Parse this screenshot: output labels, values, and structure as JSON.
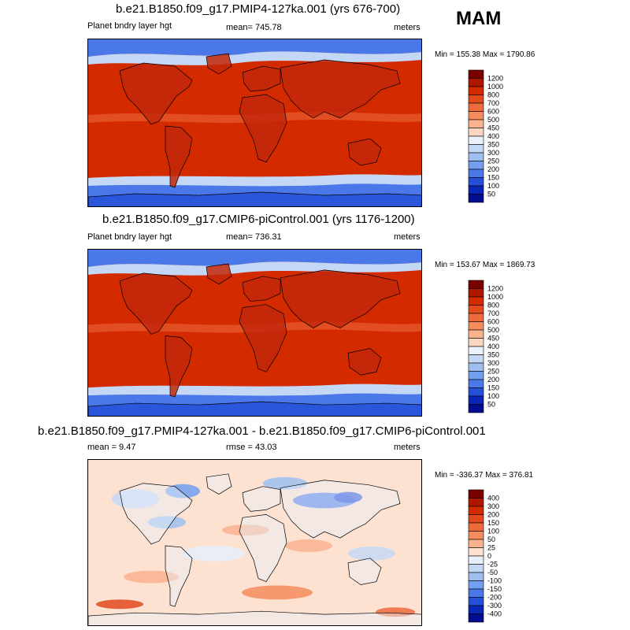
{
  "season": "MAM",
  "panels": [
    {
      "title": "b.e21.B1850.f09_g17.PMIP4-127ka.001 (yrs 676-700)",
      "left_label": "Planet bndry layer hgt",
      "center_label": "mean= 745.78",
      "units": "meters",
      "minmax": "Min = 155.38 Max = 1790.86",
      "map_name": "pmip4-127ka-map",
      "kind": "abs",
      "colorbar": {
        "labels": [
          "1200",
          "1000",
          "800",
          "700",
          "600",
          "500",
          "450",
          "400",
          "350",
          "300",
          "250",
          "200",
          "150",
          "100",
          "50"
        ],
        "colors": [
          "#7a0000",
          "#b01500",
          "#d42a00",
          "#e24a1e",
          "#ec6a3c",
          "#f48c5e",
          "#f9b28e",
          "#fcd6c0",
          "#eaf1fb",
          "#c4d8f6",
          "#9ebff0",
          "#729ff0",
          "#4a78e8",
          "#2450d8",
          "#0a26b8",
          "#040c90"
        ]
      }
    },
    {
      "title": "b.e21.B1850.f09_g17.CMIP6-piControl.001 (yrs 1176-1200)",
      "left_label": "Planet bndry layer hgt",
      "center_label": "mean= 736.31",
      "units": "meters",
      "minmax": "Min = 153.67 Max = 1869.73",
      "map_name": "cmip6-picontrol-map",
      "kind": "abs",
      "colorbar": {
        "labels": [
          "1200",
          "1000",
          "800",
          "700",
          "600",
          "500",
          "450",
          "400",
          "350",
          "300",
          "250",
          "200",
          "150",
          "100",
          "50"
        ],
        "colors": [
          "#7a0000",
          "#b01500",
          "#d42a00",
          "#e24a1e",
          "#ec6a3c",
          "#f48c5e",
          "#f9b28e",
          "#fcd6c0",
          "#eaf1fb",
          "#c4d8f6",
          "#9ebff0",
          "#729ff0",
          "#4a78e8",
          "#2450d8",
          "#0a26b8",
          "#040c90"
        ]
      }
    },
    {
      "title": "b.e21.B1850.f09_g17.PMIP4-127ka.001 - b.e21.B1850.f09_g17.CMIP6-piControl.001",
      "left_label": "mean =   9.47",
      "center_label": "rmse =   43.03",
      "units": "meters",
      "minmax": "Min = -336.37 Max = 376.81",
      "map_name": "difference-map",
      "kind": "diff",
      "colorbar": {
        "labels": [
          "400",
          "300",
          "200",
          "150",
          "100",
          "50",
          "25",
          "0",
          "-25",
          "-50",
          "-100",
          "-150",
          "-200",
          "-300",
          "-400"
        ],
        "colors": [
          "#7a0000",
          "#b01500",
          "#d42a00",
          "#e24a1e",
          "#ec6a3c",
          "#f48c5e",
          "#f9b28e",
          "#fde2d2",
          "#e6effa",
          "#c4d8f6",
          "#9ebff0",
          "#729ff0",
          "#4a78e8",
          "#2450d8",
          "#0a26b8",
          "#040c90"
        ]
      }
    }
  ]
}
